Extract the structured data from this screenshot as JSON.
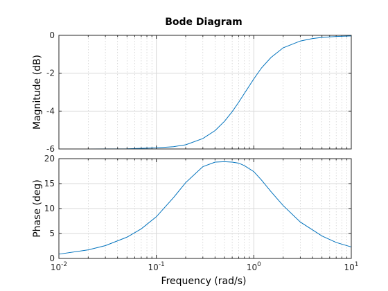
{
  "chart_data": {
    "type": "line",
    "title": "Bode Diagram",
    "xlabel": "Frequency  (rad/s)",
    "xscale": "log",
    "xlim": [
      0.01,
      10
    ],
    "xticks": [
      {
        "base": "10",
        "exp": "-2"
      },
      {
        "base": "10",
        "exp": "-1"
      },
      {
        "base": "10",
        "exp": "0"
      },
      {
        "base": "10",
        "exp": "1"
      }
    ],
    "grid": true,
    "subplots": [
      {
        "name": "magnitude",
        "ylabel": "Magnitude (dB)",
        "ylim": [
          -6,
          0
        ],
        "yticks": [
          0,
          -2,
          -4,
          -6
        ],
        "x": [
          0.01,
          0.02,
          0.05,
          0.1,
          0.15,
          0.2,
          0.3,
          0.4,
          0.5,
          0.6,
          0.7,
          0.8,
          1.0,
          1.2,
          1.5,
          2.0,
          3.0,
          4.0,
          5.0,
          7.0,
          10.0
        ],
        "y": [
          -6.0,
          -6.0,
          -5.99,
          -5.94,
          -5.88,
          -5.78,
          -5.45,
          -5.03,
          -4.54,
          -4.03,
          -3.53,
          -3.07,
          -2.3,
          -1.72,
          -1.17,
          -0.66,
          -0.3,
          -0.17,
          -0.11,
          -0.06,
          -0.03
        ]
      },
      {
        "name": "phase",
        "ylabel": "Phase (deg)",
        "ylim": [
          0,
          20
        ],
        "yticks": [
          20,
          15,
          10,
          5,
          0
        ],
        "x": [
          0.01,
          0.02,
          0.03,
          0.05,
          0.07,
          0.1,
          0.15,
          0.2,
          0.3,
          0.4,
          0.5,
          0.6,
          0.7,
          0.8,
          1.0,
          1.2,
          1.5,
          2.0,
          3.0,
          5.0,
          7.0,
          10.0
        ],
        "y": [
          0.86,
          1.72,
          2.57,
          4.27,
          5.93,
          8.36,
          12.2,
          15.2,
          18.4,
          19.3,
          19.4,
          19.3,
          19.1,
          18.6,
          17.4,
          15.7,
          13.4,
          10.6,
          7.3,
          4.5,
          3.2,
          2.3
        ]
      }
    ]
  }
}
